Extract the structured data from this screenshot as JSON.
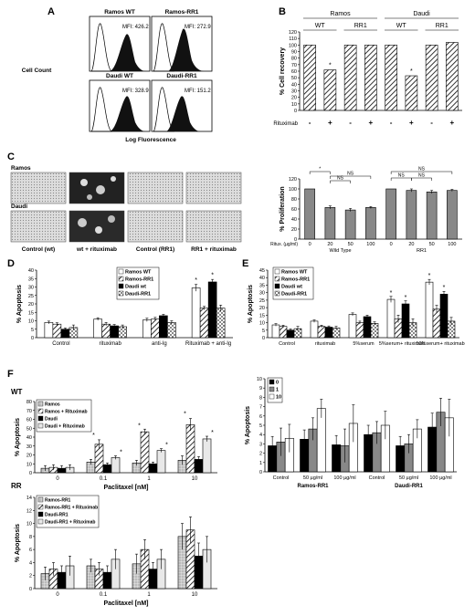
{
  "panels": {
    "A": "A",
    "B": "B",
    "C": "C",
    "D": "D",
    "E": "E",
    "F": "F"
  },
  "panelA": {
    "ylabel": "Cell Count",
    "xlabel": "Log Fluorescence",
    "hists": [
      {
        "title": "Ramos WT",
        "mfi": "MFI: 426.2"
      },
      {
        "title": "Ramos-RR1",
        "mfi": "MFI: 272.9"
      },
      {
        "title": "Daudi WT",
        "mfi": "MFI: 328.9"
      },
      {
        "title": "Daudi-RR1",
        "mfi": "MFI: 151.2"
      }
    ]
  },
  "panelC": {
    "row_labels": [
      "Ramos",
      "Daudi"
    ],
    "col_labels": [
      "Control (wt)",
      "wt + rituximab",
      "Control (RR1)",
      "RR1 + rituximab"
    ]
  },
  "chart_data": [
    {
      "id": "B",
      "type": "bar",
      "ylabel": "% Cell recovery",
      "ylim": [
        0,
        120
      ],
      "yticks": [
        "0",
        "10",
        "20",
        "30",
        "40",
        "50",
        "60",
        "70",
        "80",
        "90",
        "100",
        "110",
        "120"
      ],
      "groups": [
        "Ramos",
        "Daudi"
      ],
      "subgroups": [
        "WT",
        "RR1",
        "WT",
        "RR1"
      ],
      "row_label": "Rituximab",
      "signs": [
        "-",
        "+",
        "-",
        "+",
        "-",
        "+",
        "-",
        "+"
      ],
      "values": [
        100,
        62,
        100,
        100,
        100,
        53,
        100,
        104
      ],
      "stars": [
        "",
        "*",
        "",
        "",
        "",
        "*",
        "",
        ""
      ]
    },
    {
      "id": "Cchart",
      "type": "bar",
      "ylabel": "% Proliferation",
      "ylim": [
        0,
        120
      ],
      "yticks": [
        "0",
        "20",
        "40",
        "60",
        "80",
        "100",
        "120"
      ],
      "row_label": "Ritux. (µg/ml)",
      "x": [
        "0",
        "20",
        "50",
        "100",
        "0",
        "20",
        "50",
        "100"
      ],
      "groups": [
        "Wild Type",
        "RR1"
      ],
      "values": [
        100,
        63,
        58,
        63,
        100,
        97,
        94,
        97
      ],
      "errors": [
        0,
        3,
        3,
        2,
        0,
        3,
        3,
        2
      ],
      "annotations": [
        "*",
        "NS",
        "NS",
        "NS",
        "NS",
        "NS"
      ]
    },
    {
      "id": "D",
      "type": "bar",
      "ylabel": "% Apoptosis",
      "ylim": [
        0,
        40
      ],
      "yticks": [
        "0",
        "5",
        "10",
        "15",
        "20",
        "25",
        "30",
        "35",
        "40"
      ],
      "categories": [
        "Control",
        "rituximab",
        "anti-Ig",
        "Rituximab + anti-Ig"
      ],
      "series": [
        {
          "name": "Ramos WT",
          "values": [
            9,
            11,
            10.5,
            29.5
          ],
          "errors": [
            0.8,
            0.8,
            1,
            2
          ]
        },
        {
          "name": "Ramos-RR1",
          "values": [
            8,
            8,
            11,
            17.5
          ],
          "errors": [
            0.8,
            1,
            1,
            1
          ]
        },
        {
          "name": "Daudi wt",
          "values": [
            5,
            7,
            13,
            33
          ],
          "errors": [
            0.7,
            0.8,
            0.8,
            1.5
          ]
        },
        {
          "name": "Daudi-RR1",
          "values": [
            6,
            6.5,
            9,
            17.5
          ],
          "errors": [
            1.5,
            1,
            1,
            1.8
          ]
        }
      ],
      "stars": [
        "",
        "",
        "",
        "*",
        "",
        "",
        "",
        "*"
      ]
    },
    {
      "id": "E",
      "type": "bar",
      "ylabel": "% Apoptosis",
      "ylim": [
        0,
        45
      ],
      "yticks": [
        "0",
        "5",
        "10",
        "15",
        "20",
        "25",
        "30",
        "35",
        "40",
        "45"
      ],
      "categories": [
        "Control",
        "rituximab",
        "5%serum",
        "5%serum+ rituximab",
        "10%serum+ rituximab"
      ],
      "series": [
        {
          "name": "Ramos WT",
          "values": [
            8.5,
            11,
            15.5,
            25.5,
            37
          ],
          "errors": [
            0.8,
            0.8,
            1,
            2,
            1.8
          ]
        },
        {
          "name": "Ramos-RR1",
          "values": [
            7.5,
            7.5,
            10,
            12.5,
            19
          ],
          "errors": [
            0.8,
            0.8,
            1,
            2.5,
            2.5
          ]
        },
        {
          "name": "Daudi wt",
          "values": [
            5,
            7,
            14,
            22.5,
            29
          ],
          "errors": [
            0.8,
            0.8,
            1,
            2,
            1.8
          ]
        },
        {
          "name": "Daudi-RR1",
          "values": [
            6,
            6.5,
            9.5,
            10,
            11
          ],
          "errors": [
            1.5,
            1,
            1,
            2.5,
            2.5
          ]
        }
      ],
      "stars": [
        "",
        "",
        "",
        "*",
        "*",
        "",
        "",
        "*",
        "*"
      ]
    },
    {
      "id": "Fwt",
      "type": "bar",
      "tag": "WT",
      "ylabel": "% Apoptosis",
      "xlabel": "Paclitaxel [nM]",
      "ylim": [
        0,
        80
      ],
      "yticks": [
        "0",
        "10",
        "20",
        "30",
        "40",
        "50",
        "60",
        "70",
        "80"
      ],
      "categories": [
        "0",
        "0.1",
        "1",
        "10"
      ],
      "series": [
        {
          "name": "Ramos",
          "values": [
            5,
            12,
            11,
            14
          ],
          "errors": [
            3,
            3,
            3,
            5
          ]
        },
        {
          "name": "Ramos + Rituximab",
          "values": [
            6,
            32,
            46,
            54
          ],
          "errors": [
            3,
            5,
            3,
            7
          ]
        },
        {
          "name": "Daudi",
          "values": [
            5,
            9,
            10,
            15
          ],
          "errors": [
            3,
            2,
            2,
            3
          ]
        },
        {
          "name": "Daudi + Rituximab",
          "values": [
            6,
            17,
            25,
            38
          ],
          "errors": [
            3,
            2,
            2,
            3
          ]
        }
      ],
      "stars": [
        "*",
        "*",
        "*",
        "*",
        "*",
        "*"
      ]
    },
    {
      "id": "Frr",
      "type": "bar",
      "tag": "RR",
      "ylabel": "% Apoptosis",
      "xlabel": "Paclitaxel [nM]",
      "ylim": [
        0,
        14
      ],
      "yticks": [
        "0",
        "2",
        "4",
        "6",
        "8",
        "10",
        "12",
        "14"
      ],
      "categories": [
        "0",
        "0.1",
        "1",
        "10"
      ],
      "series": [
        {
          "name": "Ramos-RR1",
          "values": [
            2.3,
            3.5,
            3.8,
            8
          ],
          "errors": [
            1,
            1,
            1.5,
            2
          ]
        },
        {
          "name": "Ramos-RR1 + Rituximab",
          "values": [
            3,
            3,
            6,
            9
          ],
          "errors": [
            1,
            1,
            1.5,
            2
          ]
        },
        {
          "name": "Daudi-RR1",
          "values": [
            2.5,
            2.5,
            3,
            5
          ],
          "errors": [
            1,
            1,
            1,
            2
          ]
        },
        {
          "name": "Daudi-RR1 + Rituximab",
          "values": [
            3.5,
            4.5,
            4.5,
            6
          ],
          "errors": [
            1.5,
            1.5,
            1.5,
            2
          ]
        }
      ]
    },
    {
      "id": "Fright",
      "type": "bar",
      "ylabel": "% Apoptosis",
      "ylim": [
        0,
        10
      ],
      "yticks": [
        "0",
        "1",
        "2",
        "3",
        "4",
        "5",
        "6",
        "7",
        "8",
        "9",
        "10"
      ],
      "categories": [
        "Control",
        "50 µg/ml",
        "100 µg/ml",
        "Control",
        "50 µg/ml",
        "100 µg/ml"
      ],
      "groups": [
        "Ramos-RR1",
        "Daudi-RR1"
      ],
      "series": [
        {
          "name": "0",
          "values": [
            2.8,
            3.5,
            2.9,
            4,
            2.8,
            4.8
          ],
          "errors": [
            1,
            1,
            1,
            1,
            1,
            1.5
          ]
        },
        {
          "name": "1",
          "values": [
            3.2,
            4.6,
            2.8,
            4.2,
            3,
            6.4
          ],
          "errors": [
            1.5,
            1.2,
            1.8,
            1.2,
            1,
            1.5
          ]
        },
        {
          "name": "10",
          "values": [
            3.6,
            6.8,
            5.2,
            5,
            4.6,
            5.8
          ],
          "errors": [
            1.5,
            1,
            2,
            1.5,
            1,
            2
          ]
        }
      ]
    }
  ]
}
